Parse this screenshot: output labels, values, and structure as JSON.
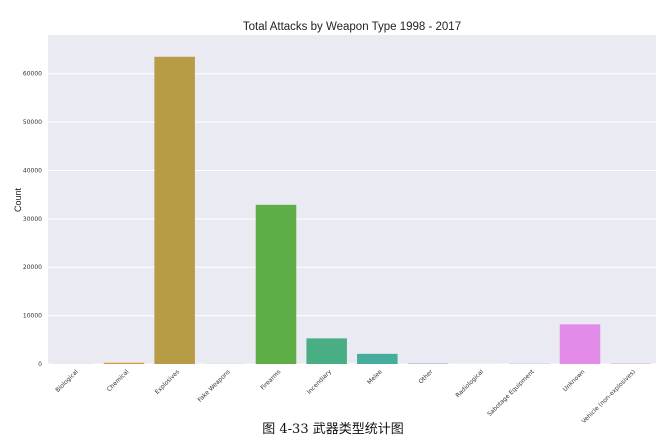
{
  "chart_data": {
    "type": "bar",
    "title": "Total Attacks by Weapon Type 1998 - 2017",
    "xlabel": "",
    "ylabel": "Count",
    "ylim": [
      0,
      68000
    ],
    "yticks": [
      0,
      10000,
      20000,
      30000,
      40000,
      50000,
      60000
    ],
    "grid": true,
    "categories": [
      "Biological",
      "Chemical",
      "Explosives",
      "Fake Weapons",
      "Firearms",
      "Incendiary",
      "Melee",
      "Other",
      "Radiological",
      "Sabotage Equipment",
      "Unknown",
      "Vehicle (non-explosives)"
    ],
    "values": [
      30,
      250,
      63500,
      30,
      32900,
      5300,
      2100,
      80,
      10,
      60,
      8200,
      80
    ],
    "colors": [
      "#ea8f8f",
      "#d99a3c",
      "#b89c45",
      "#9aaa3e",
      "#5fad47",
      "#4aae85",
      "#46ad9c",
      "#49a9b8",
      "#5aa4d6",
      "#a9a0ea",
      "#e28be8",
      "#eb8fc5"
    ]
  },
  "caption": "图 4-33  武器类型统计图"
}
